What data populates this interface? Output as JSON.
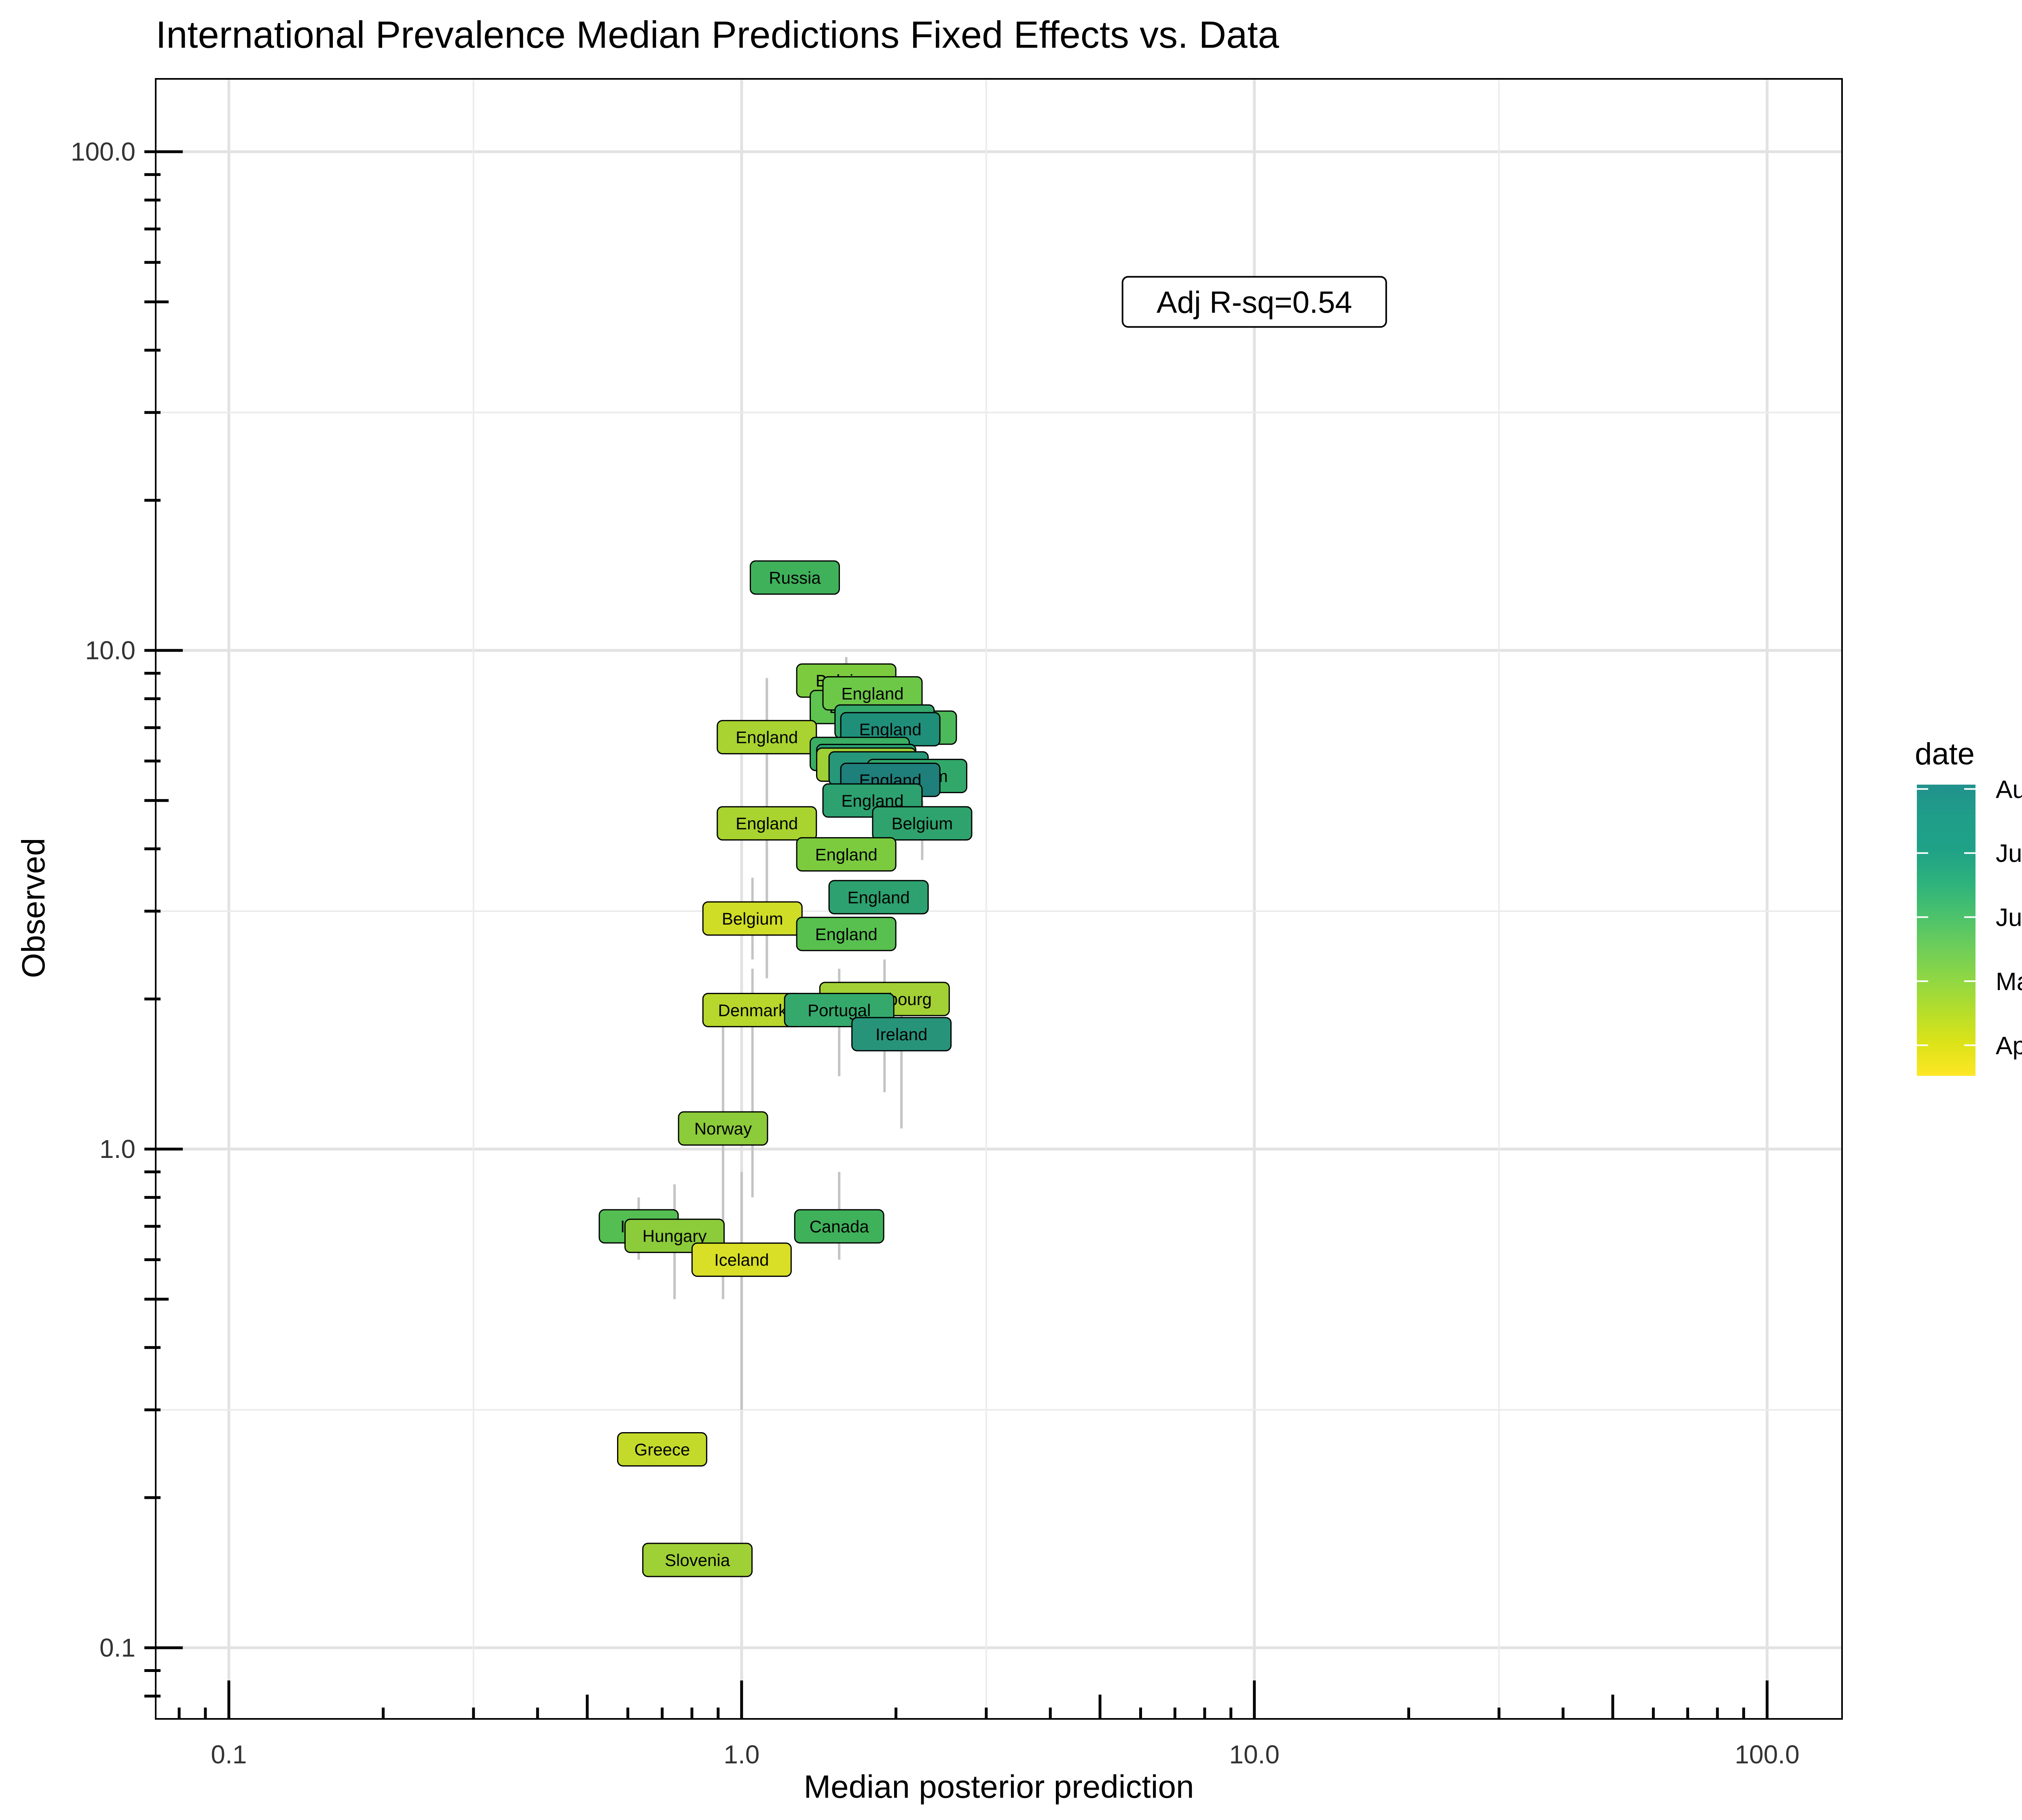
{
  "chart_data": {
    "type": "scatter",
    "title": "International Prevalence Median Predictions Fixed Effects vs. Data",
    "xlabel": "Median posterior prediction",
    "ylabel": "Observed",
    "xscale": "log",
    "yscale": "log",
    "xlim": [
      0.072,
      140
    ],
    "ylim": [
      0.072,
      140
    ],
    "xticks": [
      0.1,
      1.0,
      10.0,
      100.0
    ],
    "yticks": [
      0.1,
      1.0,
      10.0,
      100.0
    ],
    "xtick_labels": [
      "0.1",
      "1.0",
      "10.0",
      "100.0"
    ],
    "ytick_labels": [
      "0.1",
      "1.0",
      "10.0",
      "100.0"
    ],
    "grid": true,
    "annotation": {
      "text": "Adj R-sq=0.54",
      "x": 10.0,
      "y": 50.0
    },
    "legend": {
      "title": "date",
      "placement": "right",
      "labels": [
        "Aug",
        "Jul",
        "Jun",
        "May",
        "Apr"
      ],
      "colors": [
        "#1f7f7a",
        "#27967f",
        "#3fb15b",
        "#8ccb3a",
        "#dfe02a"
      ],
      "gradient": [
        "#fde725",
        "#dde318",
        "#b5de2b",
        "#8fd744",
        "#6ccd5a",
        "#4ac16d",
        "#2db27d",
        "#1fa187",
        "#1f9e89",
        "#21918c"
      ]
    },
    "points": [
      {
        "label": "Russia",
        "x": 1.27,
        "y": 14.0,
        "color": "#3fb15b"
      },
      {
        "label": "Belgium",
        "x": 1.6,
        "y": 8.7,
        "color": "#7ccb3f",
        "lo": 6.0,
        "hi": 9.7
      },
      {
        "label": "Belgium",
        "x": 1.7,
        "y": 7.7,
        "color": "#5ec34f"
      },
      {
        "label": "England",
        "x": 1.8,
        "y": 8.2,
        "color": "#6dc848"
      },
      {
        "label": "Belgium",
        "x": 2.1,
        "y": 7.0,
        "color": "#4cba5a"
      },
      {
        "label": "England",
        "x": 1.9,
        "y": 7.2,
        "color": "#35a96c"
      },
      {
        "label": "England",
        "x": 1.95,
        "y": 6.95,
        "color": "#1f8f7a"
      },
      {
        "label": "England",
        "x": 1.12,
        "y": 6.7,
        "color": "#a8d330",
        "lo": 2.2,
        "hi": 8.8
      },
      {
        "label": "England",
        "x": 1.7,
        "y": 6.2,
        "color": "#3aae63"
      },
      {
        "label": "England",
        "x": 1.75,
        "y": 6.0,
        "color": "#2aa070"
      },
      {
        "label": "England",
        "x": 1.75,
        "y": 5.9,
        "color": "#9fd035"
      },
      {
        "label": "England",
        "x": 1.85,
        "y": 5.8,
        "color": "#27977a"
      },
      {
        "label": "Belgium",
        "x": 2.2,
        "y": 5.6,
        "color": "#31a86a"
      },
      {
        "label": "England",
        "x": 1.95,
        "y": 5.5,
        "color": "#1f7f7a"
      },
      {
        "label": "England",
        "x": 1.8,
        "y": 5.0,
        "color": "#2da16f"
      },
      {
        "label": "Belgium",
        "x": 2.25,
        "y": 4.5,
        "color": "#2fa36d",
        "lo": 3.8,
        "hi": 5.0
      },
      {
        "label": "England",
        "x": 1.12,
        "y": 4.5,
        "color": "#a9d32f"
      },
      {
        "label": "England",
        "x": 1.6,
        "y": 3.9,
        "color": "#7ccb3f"
      },
      {
        "label": "England",
        "x": 1.85,
        "y": 3.2,
        "color": "#2da16f"
      },
      {
        "label": "Belgium",
        "x": 1.05,
        "y": 2.9,
        "color": "#d0dd26",
        "lo": 2.4,
        "hi": 3.5
      },
      {
        "label": "England",
        "x": 1.6,
        "y": 2.7,
        "color": "#58c04f"
      },
      {
        "label": "Luxembourg",
        "x": 1.9,
        "y": 2.0,
        "color": "#a3d135",
        "lo": 1.3,
        "hi": 2.4
      },
      {
        "label": "Denmark",
        "x": 1.05,
        "y": 1.9,
        "color": "#b8d72c",
        "lo": 0.8,
        "hi": 2.3
      },
      {
        "label": "Portugal",
        "x": 1.55,
        "y": 1.9,
        "color": "#35a96c",
        "lo": 1.4,
        "hi": 2.3
      },
      {
        "label": "Ireland",
        "x": 2.05,
        "y": 1.7,
        "color": "#27947a",
        "lo": 1.1,
        "hi": 2.1
      },
      {
        "label": "Norway",
        "x": 0.92,
        "y": 1.1,
        "color": "#8ccb3a",
        "lo": 0.5,
        "hi": 1.8
      },
      {
        "label": "India",
        "x": 0.63,
        "y": 0.7,
        "color": "#54be53",
        "lo": 0.6,
        "hi": 0.8
      },
      {
        "label": "Hungary",
        "x": 0.74,
        "y": 0.67,
        "color": "#8ccb3a",
        "lo": 0.5,
        "hi": 0.85
      },
      {
        "label": "Canada",
        "x": 1.55,
        "y": 0.7,
        "color": "#3fb15b",
        "lo": 0.6,
        "hi": 0.9
      },
      {
        "label": "Iceland",
        "x": 1.0,
        "y": 0.6,
        "color": "#d8df26",
        "lo": 0.3,
        "hi": 0.9
      },
      {
        "label": "Greece",
        "x": 0.7,
        "y": 0.25,
        "color": "#c3da2a"
      },
      {
        "label": "Slovenia",
        "x": 0.82,
        "y": 0.15,
        "color": "#9fd035"
      }
    ]
  }
}
